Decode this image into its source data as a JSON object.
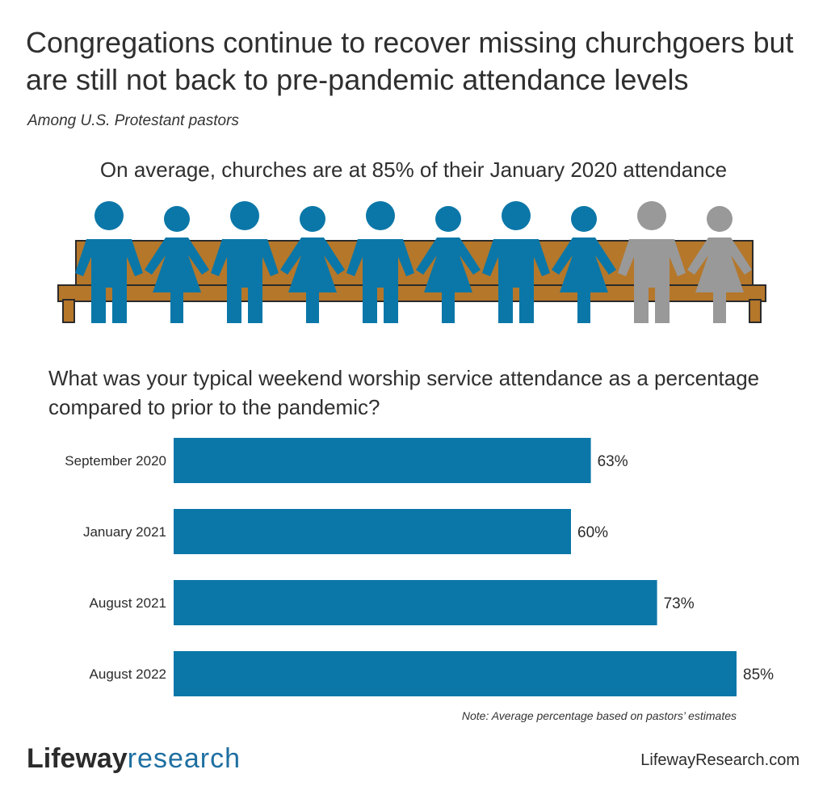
{
  "title": "Congregations continue to recover missing churchgoers but are still not back to pre-pandemic attendance levels",
  "subtitle": "Among U.S. Protestant pastors",
  "average_statement": "On average, churches are at 85% of their January 2020 attendance",
  "question": "What was your typical weekend worship service attendance as a percentage compared to prior to the pandemic?",
  "note": "Note: Average percentage based on pastors’ estimates",
  "brand": {
    "name": "Lifeway",
    "accent": "research"
  },
  "website": "LifewayResearch.com",
  "colors": {
    "bar": "#0b77a8",
    "figure_filled": "#0b77a8",
    "figure_empty": "#999999",
    "pew": "#b5772a"
  },
  "pictogram": {
    "total_figures": 10,
    "filled_figures": 8
  },
  "chart_data": {
    "type": "bar",
    "orientation": "horizontal",
    "categories": [
      "September 2020",
      "January 2021",
      "August 2021",
      "August 2022"
    ],
    "values": [
      63,
      60,
      73,
      85
    ],
    "value_labels": [
      "63%",
      "60%",
      "73%",
      "85%"
    ],
    "xlim": [
      0,
      100
    ]
  }
}
